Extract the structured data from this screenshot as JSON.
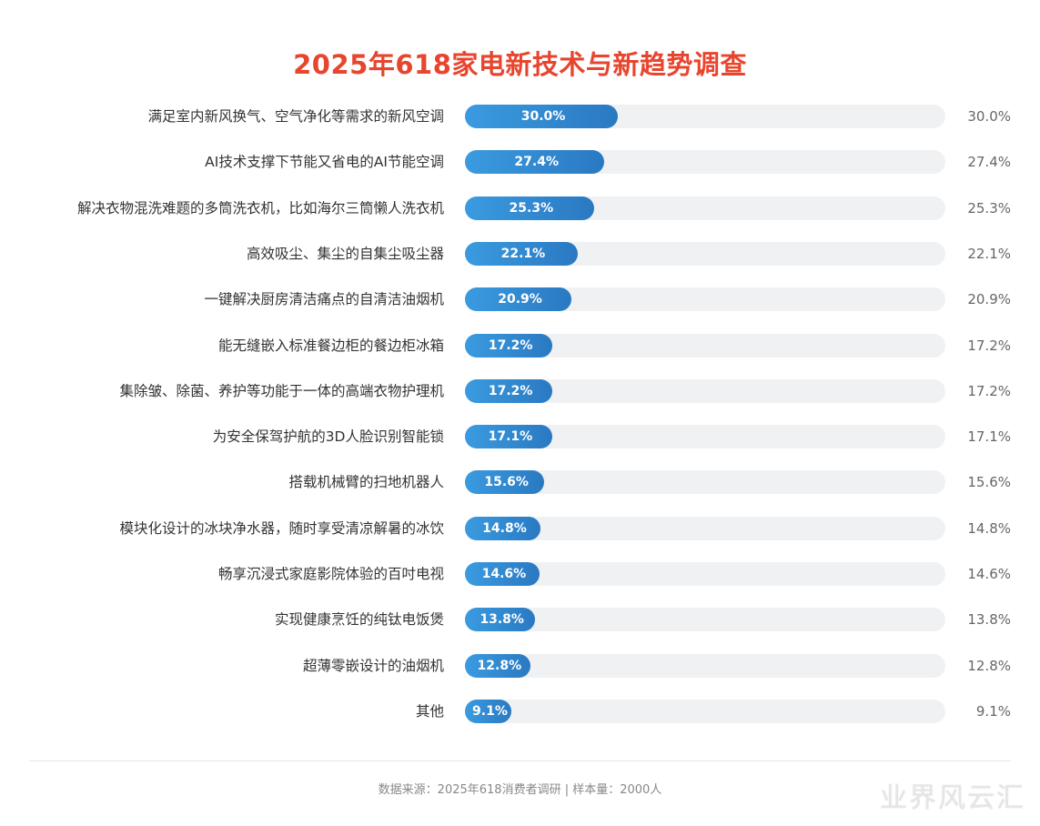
{
  "chart_data": {
    "type": "bar",
    "orientation": "horizontal",
    "title": "2025年618家电新技术与新趋势调查",
    "xlim": [
      0,
      100
    ],
    "categories": [
      "满足室内新风换气、空气净化等需求的新风空调",
      "AI技术支撑下节能又省电的AI节能空调",
      "解决衣物混洗难题的多筒洗衣机，比如海尔三筒懒人洗衣机",
      "高效吸尘、集尘的自集尘吸尘器",
      "一键解决厨房清洁痛点的自清洁油烟机",
      "能无缝嵌入标准餐边柜的餐边柜冰箱",
      "集除皱、除菌、养护等功能于一体的高端衣物护理机",
      "为安全保驾护航的3D人脸识别智能锁",
      "搭载机械臂的扫地机器人",
      "模块化设计的冰块净水器，随时享受清凉解暑的冰饮",
      "畅享沉浸式家庭影院体验的百吋电视",
      "实现健康烹饪的纯钛电饭煲",
      "超薄零嵌设计的油烟机",
      "其他"
    ],
    "values": [
      30.0,
      27.4,
      25.3,
      22.1,
      20.9,
      17.2,
      17.2,
      17.1,
      15.6,
      14.8,
      14.6,
      13.8,
      12.8,
      9.1
    ],
    "value_labels": [
      "30.0%",
      "27.4%",
      "25.3%",
      "22.1%",
      "20.9%",
      "17.2%",
      "17.2%",
      "17.1%",
      "15.6%",
      "14.8%",
      "14.6%",
      "13.8%",
      "12.8%",
      "9.1%"
    ],
    "grid": false,
    "colors": {
      "bar": "#2f86d0",
      "track": "#f0f1f3",
      "title": "#e8452e"
    }
  },
  "footer": {
    "source": "数据来源：2025年618消费者调研 | 样本量：2000人"
  },
  "watermark": "业界风云汇"
}
